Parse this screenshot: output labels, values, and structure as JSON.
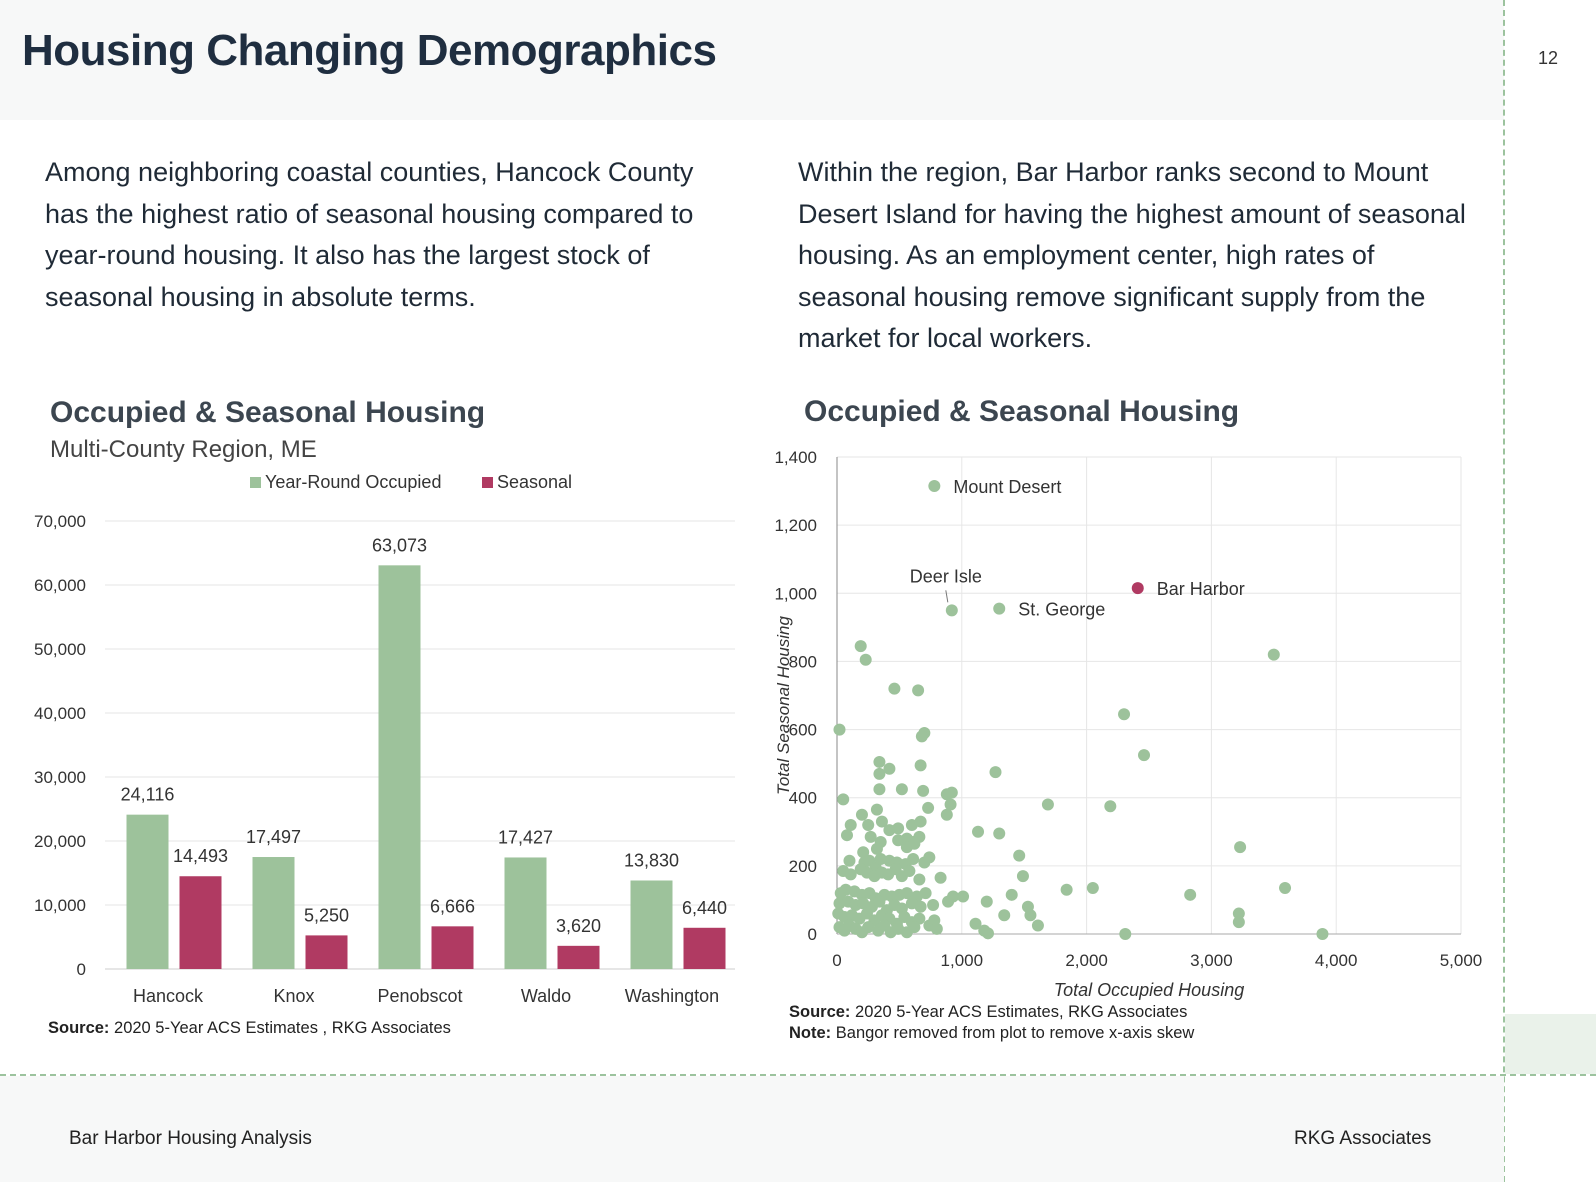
{
  "slide": {
    "title": "Housing Changing Demographics",
    "page_number": "12",
    "footer_left": "Bar Harbor Housing Analysis",
    "footer_right": "RKG Associates"
  },
  "text": {
    "left_paragraph": "Among neighboring coastal counties, Hancock County has the highest ratio of seasonal housing compared to year-round housing. It also has the largest stock of seasonal housing in absolute terms.",
    "right_paragraph": "Within the region, Bar Harbor ranks second to Mount Desert Island for having the highest amount of seasonal housing. As an employment center, high rates of seasonal housing remove significant supply from the market for local workers."
  },
  "colors": {
    "green": "#9dc29b",
    "crimson": "#b03a62",
    "title": "#1f2e40"
  },
  "chart_data": [
    {
      "type": "bar",
      "title": "Occupied & Seasonal Housing",
      "subtitle": "Multi-County Region, ME",
      "categories": [
        "Hancock",
        "Knox",
        "Penobscot",
        "Waldo",
        "Washington"
      ],
      "series": [
        {
          "name": "Year-Round Occupied",
          "color": "#9dc29b",
          "values": [
            24116,
            17497,
            63073,
            17427,
            13830
          ],
          "labels": [
            "24,116",
            "17,497",
            "63,073",
            "17,427",
            "13,830"
          ]
        },
        {
          "name": "Seasonal",
          "color": "#b03a62",
          "values": [
            14493,
            5250,
            6666,
            3620,
            6440
          ],
          "labels": [
            "14,493",
            "5,250",
            "6,666",
            "3,620",
            "6,440"
          ]
        }
      ],
      "ylim": [
        0,
        70000
      ],
      "yticks": [
        0,
        10000,
        20000,
        30000,
        40000,
        50000,
        60000,
        70000
      ],
      "ytick_labels": [
        "0",
        "10,000",
        "20,000",
        "30,000",
        "40,000",
        "50,000",
        "60,000",
        "70,000"
      ],
      "legend_position": "top",
      "grid": true,
      "source_label": "Source:",
      "source_text": " 2020 5-Year ACS Estimates , RKG Associates"
    },
    {
      "type": "scatter",
      "title": "Occupied & Seasonal Housing",
      "xlabel": "Total Occupied Housing",
      "ylabel": "Total Seasonal Housing",
      "xlim": [
        0,
        5000
      ],
      "ylim": [
        0,
        1400
      ],
      "xticks": [
        0,
        1000,
        2000,
        3000,
        4000,
        5000
      ],
      "xtick_labels": [
        "0",
        "1,000",
        "2,000",
        "3,000",
        "4,000",
        "5,000"
      ],
      "yticks": [
        0,
        200,
        400,
        600,
        800,
        1000,
        1200,
        1400
      ],
      "ytick_labels": [
        "0",
        "200",
        "400",
        "600",
        "800",
        "1,000",
        "1,200",
        "1,400"
      ],
      "grid": true,
      "highlighted": [
        {
          "name": "Mount Desert",
          "x": 780,
          "y": 1315,
          "color": "#9dc29b"
        },
        {
          "name": "Bar Harbor",
          "x": 2410,
          "y": 1015,
          "color": "#b03a62"
        },
        {
          "name": "St. George",
          "x": 1300,
          "y": 955,
          "color": "#9dc29b"
        },
        {
          "name": "Deer Isle",
          "x": 920,
          "y": 950,
          "color": "#9dc29b"
        }
      ],
      "points": [
        [
          190,
          845
        ],
        [
          230,
          805
        ],
        [
          460,
          720
        ],
        [
          650,
          715
        ],
        [
          20,
          600
        ],
        [
          700,
          590
        ],
        [
          680,
          580
        ],
        [
          340,
          505
        ],
        [
          420,
          485
        ],
        [
          670,
          495
        ],
        [
          340,
          470
        ],
        [
          1270,
          475
        ],
        [
          50,
          395
        ],
        [
          340,
          425
        ],
        [
          520,
          425
        ],
        [
          690,
          420
        ],
        [
          880,
          410
        ],
        [
          920,
          415
        ],
        [
          910,
          380
        ],
        [
          1690,
          380
        ],
        [
          2190,
          375
        ],
        [
          200,
          350
        ],
        [
          320,
          365
        ],
        [
          110,
          320
        ],
        [
          250,
          320
        ],
        [
          360,
          330
        ],
        [
          420,
          305
        ],
        [
          490,
          310
        ],
        [
          600,
          320
        ],
        [
          670,
          330
        ],
        [
          730,
          370
        ],
        [
          880,
          350
        ],
        [
          1130,
          300
        ],
        [
          1300,
          295
        ],
        [
          80,
          290
        ],
        [
          270,
          285
        ],
        [
          350,
          270
        ],
        [
          490,
          275
        ],
        [
          560,
          280
        ],
        [
          610,
          270
        ],
        [
          660,
          285
        ],
        [
          210,
          240
        ],
        [
          320,
          250
        ],
        [
          560,
          255
        ],
        [
          620,
          265
        ],
        [
          100,
          215
        ],
        [
          220,
          210
        ],
        [
          260,
          215
        ],
        [
          310,
          195
        ],
        [
          350,
          220
        ],
        [
          420,
          215
        ],
        [
          480,
          210
        ],
        [
          550,
          205
        ],
        [
          610,
          220
        ],
        [
          700,
          210
        ],
        [
          740,
          225
        ],
        [
          1460,
          230
        ],
        [
          50,
          185
        ],
        [
          110,
          175
        ],
        [
          190,
          190
        ],
        [
          240,
          180
        ],
        [
          300,
          170
        ],
        [
          360,
          180
        ],
        [
          410,
          175
        ],
        [
          470,
          190
        ],
        [
          520,
          170
        ],
        [
          580,
          185
        ],
        [
          660,
          160
        ],
        [
          830,
          165
        ],
        [
          1490,
          170
        ],
        [
          30,
          120
        ],
        [
          70,
          130
        ],
        [
          140,
          125
        ],
        [
          200,
          115
        ],
        [
          260,
          120
        ],
        [
          310,
          105
        ],
        [
          380,
          115
        ],
        [
          440,
          110
        ],
        [
          500,
          115
        ],
        [
          560,
          120
        ],
        [
          640,
          110
        ],
        [
          710,
          120
        ],
        [
          930,
          110
        ],
        [
          1010,
          110
        ],
        [
          1200,
          95
        ],
        [
          1400,
          115
        ],
        [
          1840,
          130
        ],
        [
          2050,
          135
        ],
        [
          20,
          90
        ],
        [
          90,
          95
        ],
        [
          150,
          85
        ],
        [
          210,
          90
        ],
        [
          280,
          80
        ],
        [
          340,
          95
        ],
        [
          400,
          70
        ],
        [
          460,
          85
        ],
        [
          520,
          75
        ],
        [
          600,
          90
        ],
        [
          670,
          80
        ],
        [
          770,
          85
        ],
        [
          890,
          95
        ],
        [
          1340,
          55
        ],
        [
          1550,
          55
        ],
        [
          1530,
          80
        ],
        [
          10,
          60
        ],
        [
          60,
          50
        ],
        [
          120,
          55
        ],
        [
          180,
          45
        ],
        [
          240,
          60
        ],
        [
          300,
          40
        ],
        [
          360,
          55
        ],
        [
          420,
          45
        ],
        [
          480,
          30
        ],
        [
          540,
          50
        ],
        [
          600,
          35
        ],
        [
          660,
          45
        ],
        [
          740,
          25
        ],
        [
          780,
          40
        ],
        [
          1110,
          30
        ],
        [
          1610,
          25
        ],
        [
          1180,
          10
        ],
        [
          20,
          20
        ],
        [
          60,
          10
        ],
        [
          100,
          25
        ],
        [
          150,
          15
        ],
        [
          200,
          5
        ],
        [
          250,
          20
        ],
        [
          330,
          10
        ],
        [
          380,
          25
        ],
        [
          430,
          5
        ],
        [
          490,
          15
        ],
        [
          560,
          5
        ],
        [
          620,
          20
        ],
        [
          800,
          15
        ],
        [
          1210,
          2
        ],
        [
          2300,
          645
        ],
        [
          2460,
          525
        ],
        [
          3500,
          820
        ],
        [
          3230,
          255
        ],
        [
          3590,
          135
        ],
        [
          2830,
          115
        ],
        [
          3220,
          60
        ],
        [
          3220,
          35
        ],
        [
          2310,
          0
        ],
        [
          3890,
          0
        ]
      ],
      "source_label": "Source:",
      "source_text": " 2020 5-Year ACS Estimates, RKG Associates",
      "note_label": "Note:",
      "note_text": " Bangor removed from plot to remove x-axis skew"
    }
  ]
}
